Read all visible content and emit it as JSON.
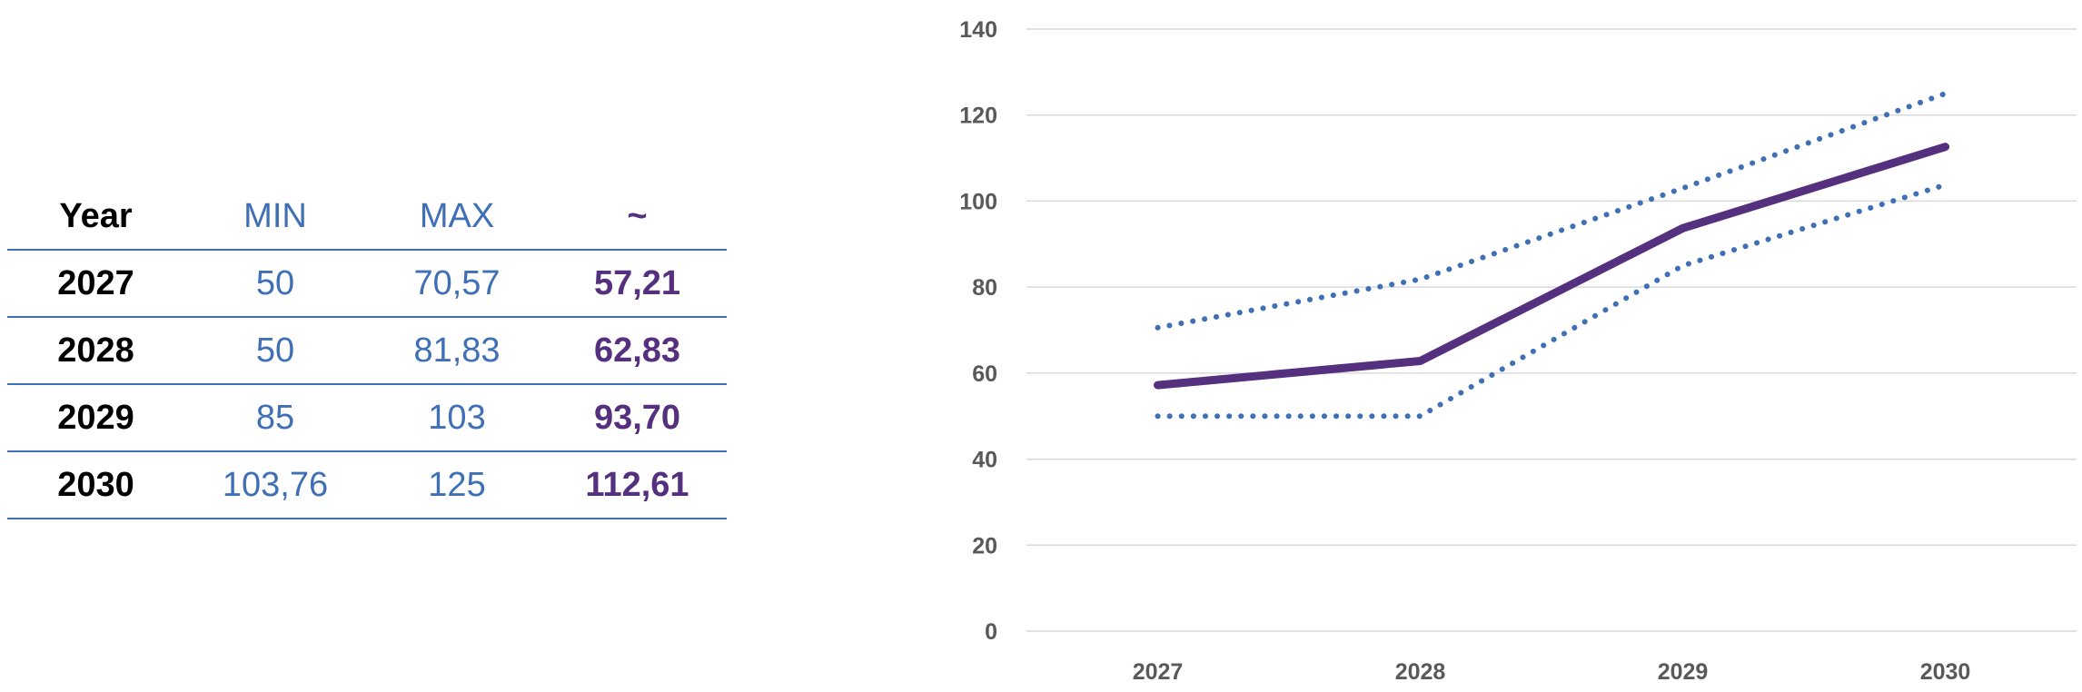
{
  "table": {
    "headers": {
      "year": "Year",
      "min": "MIN",
      "max": "MAX",
      "avg": "~"
    },
    "rows": [
      {
        "year": "2027",
        "min": "50",
        "max": "70,57",
        "avg": "57,21"
      },
      {
        "year": "2028",
        "min": "50",
        "max": "81,83",
        "avg": "62,83"
      },
      {
        "year": "2029",
        "min": "85",
        "max": "103",
        "avg": "93,70"
      },
      {
        "year": "2030",
        "min": "103,76",
        "max": "125",
        "avg": "112,61"
      }
    ]
  },
  "chart_data": {
    "type": "line",
    "x": [
      "2027",
      "2028",
      "2029",
      "2030"
    ],
    "ylim": [
      0,
      140
    ],
    "yticks": [
      0,
      20,
      40,
      60,
      80,
      100,
      120,
      140
    ],
    "grid": true,
    "series": [
      {
        "values": [
          70.57,
          81.83,
          103,
          125
        ],
        "color": "#3f6fb4",
        "style": "dotted"
      },
      {
        "values": [
          50,
          50,
          85,
          103.76
        ],
        "color": "#3f6fb4",
        "style": "dotted"
      },
      {
        "values": [
          57.21,
          62.83,
          93.7,
          112.61
        ],
        "color": "#55307e",
        "style": "solid"
      }
    ]
  }
}
